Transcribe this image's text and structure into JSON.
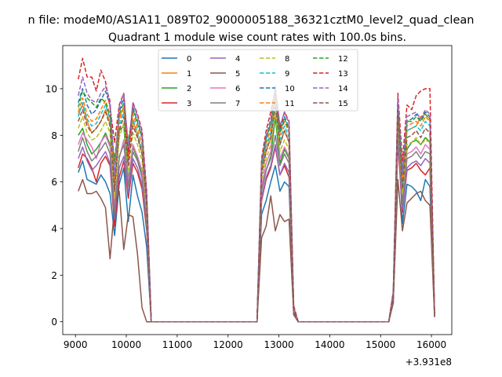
{
  "figure": {
    "suptitle": "n file: modeM0/AS1A11_089T02_9000005188_36321cztM0_level2_quad_clean",
    "title": "Quadrant 1 module wise count rates with 100.0s bins.",
    "offset_text": "+3.931e8"
  },
  "chart_data": {
    "type": "line",
    "title": "Quadrant 1 module wise count rates with 100.0s bins.",
    "xlabel": "",
    "ylabel": "",
    "x_offset": 393100000,
    "xlim": [
      8750,
      16400
    ],
    "ylim": [
      -0.55,
      11.85
    ],
    "xticks": [
      9000,
      10000,
      11000,
      12000,
      13000,
      14000,
      15000,
      16000
    ],
    "yticks": [
      0,
      2,
      4,
      6,
      8,
      10
    ],
    "grid": false,
    "legend": {
      "placement": "upper-center",
      "columns": 4
    },
    "x": [
      9055,
      9140,
      9230,
      9320,
      9410,
      9500,
      9590,
      9680,
      9770,
      9860,
      9950,
      10040,
      10130,
      10220,
      10310,
      10400,
      10490,
      12570,
      12660,
      12750,
      12840,
      12930,
      13020,
      13110,
      13200,
      13290,
      13380,
      15160,
      15250,
      15340,
      15430,
      15520,
      15610,
      15700,
      15790,
      15880,
      15970,
      16060
    ],
    "series": [
      {
        "name": "0",
        "color": "#1f77b4",
        "dash": false,
        "values": [
          6.4,
          6.9,
          6.1,
          6.0,
          5.9,
          6.3,
          6.0,
          5.5,
          3.7,
          5.9,
          6.6,
          4.3,
          6.3,
          5.4,
          4.7,
          3.2,
          0,
          0,
          4.6,
          5.2,
          6.0,
          6.7,
          5.6,
          6.0,
          5.8,
          0.4,
          0,
          0,
          0.9,
          8.6,
          4.2,
          5.9,
          5.8,
          5.6,
          5.2,
          6.1,
          5.8,
          0.2
        ]
      },
      {
        "name": "1",
        "color": "#ff7f0e",
        "dash": false,
        "values": [
          8.9,
          9.3,
          8.6,
          8.1,
          8.3,
          8.6,
          9.1,
          8.5,
          6.8,
          8.8,
          9.2,
          7.4,
          8.6,
          8.0,
          7.2,
          5.4,
          0,
          0,
          6.5,
          7.3,
          7.9,
          9.8,
          7.6,
          8.2,
          7.7,
          0.6,
          0,
          0,
          1.2,
          9.3,
          6.1,
          8.2,
          8.3,
          8.4,
          8.8,
          8.9,
          8.7,
          0.3
        ]
      },
      {
        "name": "2",
        "color": "#2ca02c",
        "dash": false,
        "values": [
          8.0,
          8.3,
          7.6,
          7.2,
          7.4,
          7.7,
          8.1,
          7.6,
          5.7,
          8.2,
          8.4,
          6.1,
          7.5,
          7.0,
          6.3,
          4.6,
          0,
          0,
          5.6,
          6.5,
          7.1,
          8.8,
          6.8,
          7.4,
          7.0,
          0.5,
          0,
          0,
          1.1,
          8.8,
          5.4,
          7.4,
          7.7,
          7.8,
          7.6,
          7.9,
          7.7,
          0.3
        ]
      },
      {
        "name": "3",
        "color": "#d62728",
        "dash": false,
        "values": [
          6.6,
          7.2,
          7.0,
          6.6,
          6.0,
          6.8,
          7.1,
          6.7,
          4.1,
          6.2,
          6.9,
          5.3,
          6.8,
          6.4,
          5.7,
          3.9,
          0,
          0,
          5.2,
          6.1,
          6.6,
          7.5,
          6.3,
          6.7,
          6.2,
          0.4,
          0,
          0,
          1.0,
          7.7,
          4.7,
          6.5,
          6.6,
          6.8,
          6.5,
          6.3,
          6.6,
          0.3
        ]
      },
      {
        "name": "4",
        "color": "#9467bd",
        "dash": false,
        "values": [
          7.0,
          7.5,
          6.9,
          6.5,
          6.7,
          7.0,
          7.3,
          6.8,
          4.4,
          6.6,
          7.1,
          5.5,
          7.0,
          6.6,
          5.9,
          4.1,
          0,
          0,
          5.3,
          6.2,
          6.7,
          7.6,
          6.3,
          6.8,
          6.4,
          0.4,
          0,
          0,
          1.0,
          7.9,
          4.8,
          6.6,
          6.8,
          6.9,
          6.7,
          7.0,
          6.8,
          0.3
        ]
      },
      {
        "name": "5",
        "color": "#8c564b",
        "dash": false,
        "values": [
          5.6,
          6.1,
          5.5,
          5.5,
          5.6,
          5.3,
          4.9,
          2.7,
          5.0,
          5.6,
          3.1,
          4.6,
          4.5,
          2.9,
          0.6,
          0,
          0,
          0,
          3.6,
          4.1,
          5.4,
          3.9,
          4.6,
          4.3,
          4.4,
          0.3,
          0,
          0,
          0.8,
          6.1,
          3.9,
          5.1,
          5.3,
          5.5,
          5.6,
          5.2,
          5.0,
          0.2
        ]
      },
      {
        "name": "6",
        "color": "#e377c2",
        "dash": false,
        "values": [
          7.6,
          8.1,
          7.8,
          7.5,
          7.0,
          7.7,
          8.0,
          7.5,
          5.0,
          7.0,
          7.8,
          6.0,
          7.6,
          7.1,
          6.5,
          4.4,
          0,
          0,
          5.8,
          6.8,
          7.3,
          10.0,
          7.0,
          7.5,
          7.1,
          0.5,
          0,
          0,
          1.1,
          8.4,
          5.2,
          7.2,
          7.3,
          7.5,
          7.2,
          7.6,
          7.4,
          0.3
        ]
      },
      {
        "name": "7",
        "color": "#7f7f7f",
        "dash": false,
        "values": [
          7.3,
          7.9,
          7.3,
          6.9,
          7.1,
          7.4,
          7.7,
          7.2,
          4.7,
          7.1,
          7.6,
          5.8,
          7.3,
          6.9,
          6.2,
          4.3,
          0,
          0,
          5.6,
          6.5,
          7.0,
          8.0,
          6.7,
          7.2,
          6.8,
          0.5,
          0,
          0,
          1.1,
          8.2,
          5.1,
          7.0,
          7.1,
          7.3,
          7.0,
          7.3,
          7.2,
          0.3
        ]
      },
      {
        "name": "8",
        "color": "#bcbd22",
        "dash": true,
        "values": [
          8.3,
          8.8,
          8.1,
          7.8,
          7.9,
          8.2,
          8.6,
          8.1,
          5.3,
          7.9,
          8.5,
          6.5,
          8.1,
          7.6,
          6.9,
          4.8,
          0,
          0,
          6.1,
          7.0,
          7.6,
          9.0,
          7.3,
          7.8,
          7.4,
          0.5,
          0,
          0,
          1.1,
          8.7,
          5.5,
          7.6,
          7.7,
          7.9,
          7.6,
          7.8,
          7.7,
          0.3
        ]
      },
      {
        "name": "9",
        "color": "#17becf",
        "dash": true,
        "values": [
          8.8,
          9.4,
          8.7,
          8.4,
          8.5,
          8.9,
          9.3,
          8.7,
          5.8,
          8.4,
          9.0,
          6.9,
          8.7,
          8.1,
          7.4,
          5.1,
          0,
          0,
          6.5,
          7.5,
          8.1,
          9.5,
          7.8,
          8.4,
          7.9,
          0.6,
          0,
          0,
          1.2,
          9.1,
          5.9,
          8.2,
          8.3,
          8.4,
          8.2,
          8.6,
          8.4,
          0.3
        ]
      },
      {
        "name": "10",
        "color": "#1f77b4",
        "dash": true,
        "values": [
          9.4,
          10.0,
          9.3,
          8.9,
          9.1,
          9.5,
          9.9,
          9.3,
          6.2,
          9.0,
          9.6,
          7.3,
          9.2,
          8.6,
          7.9,
          5.4,
          0,
          0,
          6.8,
          7.9,
          8.5,
          9.9,
          8.2,
          8.8,
          8.3,
          0.6,
          0,
          0,
          1.2,
          9.4,
          6.2,
          8.6,
          8.7,
          8.9,
          8.6,
          9.0,
          8.8,
          0.3
        ]
      },
      {
        "name": "11",
        "color": "#ff7f0e",
        "dash": true,
        "values": [
          9.0,
          9.6,
          8.9,
          8.6,
          8.7,
          9.1,
          9.5,
          8.9,
          5.9,
          8.6,
          9.2,
          7.0,
          8.9,
          8.3,
          7.6,
          5.2,
          0,
          0,
          6.6,
          7.6,
          8.3,
          9.7,
          8.0,
          8.6,
          8.1,
          0.6,
          0,
          0,
          1.2,
          9.2,
          6.0,
          8.4,
          8.5,
          8.6,
          8.4,
          8.8,
          8.6,
          0.3
        ]
      },
      {
        "name": "12",
        "color": "#2ca02c",
        "dash": true,
        "values": [
          9.2,
          9.9,
          9.6,
          9.4,
          9.2,
          9.6,
          9.4,
          8.8,
          6.9,
          8.9,
          9.4,
          7.7,
          9.1,
          8.5,
          7.9,
          5.3,
          0,
          0,
          6.7,
          7.8,
          8.5,
          9.8,
          8.1,
          8.7,
          8.2,
          0.6,
          0,
          0,
          1.2,
          9.3,
          6.4,
          8.6,
          8.6,
          8.8,
          8.6,
          8.9,
          8.7,
          0.3
        ]
      },
      {
        "name": "13",
        "color": "#d62728",
        "dash": true,
        "values": [
          10.4,
          11.3,
          10.5,
          10.5,
          9.9,
          10.8,
          10.3,
          9.2,
          7.7,
          9.3,
          9.8,
          7.1,
          9.4,
          8.9,
          8.2,
          5.6,
          0,
          0,
          7.0,
          8.2,
          9.0,
          10.0,
          8.3,
          9.0,
          8.6,
          0.7,
          0,
          0,
          1.3,
          9.8,
          6.9,
          9.3,
          9.1,
          9.7,
          9.9,
          10.0,
          10.0,
          0.4
        ]
      },
      {
        "name": "14",
        "color": "#9467bd",
        "dash": true,
        "values": [
          9.7,
          10.5,
          9.8,
          9.5,
          9.4,
          9.8,
          10.1,
          9.5,
          6.3,
          9.2,
          9.8,
          7.5,
          9.4,
          8.8,
          8.1,
          5.5,
          0,
          0,
          6.9,
          8.0,
          8.7,
          10.1,
          8.4,
          9.0,
          8.5,
          0.6,
          0,
          0,
          1.3,
          9.6,
          6.4,
          8.8,
          8.9,
          9.0,
          8.7,
          9.1,
          8.9,
          0.3
        ]
      },
      {
        "name": "15",
        "color": "#8c564b",
        "dash": true,
        "values": [
          8.6,
          9.1,
          8.4,
          8.1,
          8.3,
          8.6,
          9.0,
          8.4,
          5.6,
          8.2,
          8.8,
          6.7,
          8.4,
          7.9,
          7.2,
          5.0,
          0,
          0,
          6.3,
          7.3,
          7.9,
          9.3,
          7.6,
          8.2,
          7.7,
          0.5,
          0,
          0,
          1.1,
          8.9,
          5.7,
          7.9,
          8.0,
          8.2,
          7.9,
          8.3,
          8.1,
          0.3
        ]
      }
    ]
  }
}
